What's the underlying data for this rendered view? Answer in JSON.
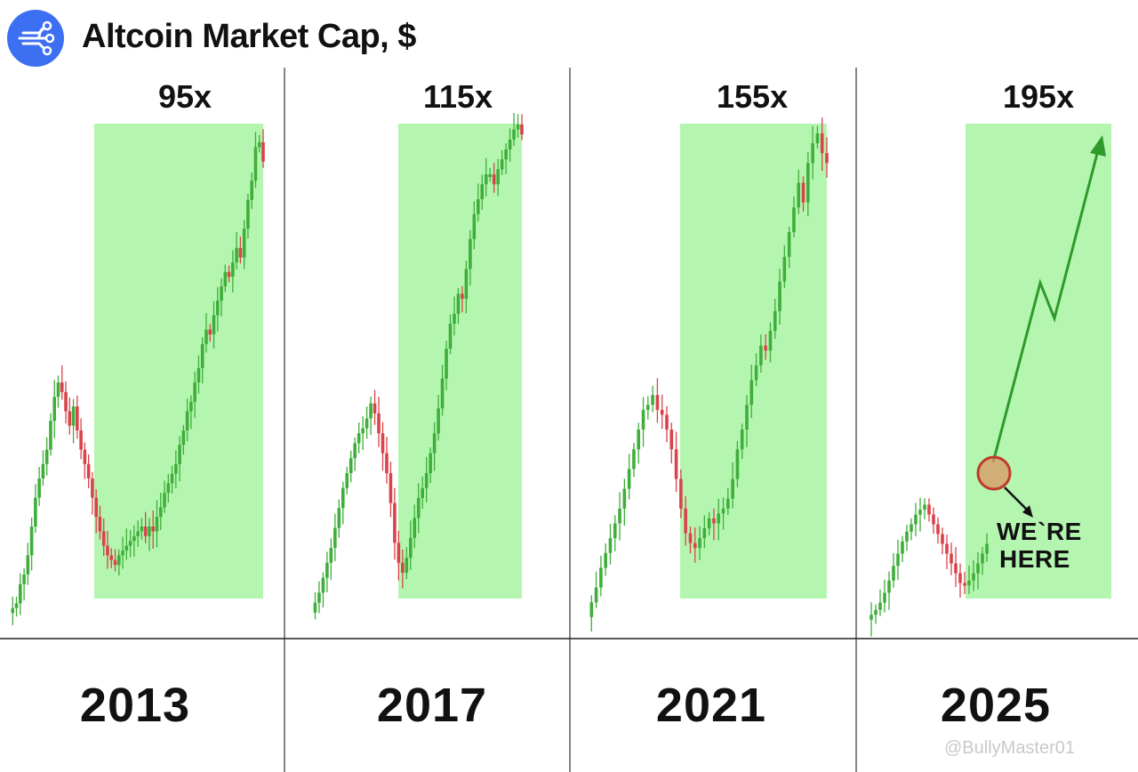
{
  "header": {
    "title": "Altcoin Market Cap, $",
    "logo_icon": "network-nodes-icon",
    "logo_color": "#3d6ff2"
  },
  "watermark": "@BullyMaster01",
  "chart_data": [
    {
      "type": "candlestick",
      "cycle": "2013",
      "multiplier_label": "95x",
      "series": [
        {
          "values": [
            0.02,
            0.03,
            0.04,
            0.08,
            0.1,
            0.14,
            0.2,
            0.26,
            0.3,
            0.33,
            0.36,
            0.42,
            0.47,
            0.5,
            0.48,
            0.44,
            0.41,
            0.45,
            0.4,
            0.36,
            0.33,
            0.3,
            0.26,
            0.22,
            0.19,
            0.16,
            0.14,
            0.13,
            0.12,
            0.14,
            0.15,
            0.16,
            0.17,
            0.18,
            0.19,
            0.2,
            0.18,
            0.2,
            0.19,
            0.22,
            0.24,
            0.27,
            0.29,
            0.31,
            0.33,
            0.37,
            0.4,
            0.44,
            0.46,
            0.5,
            0.53,
            0.58,
            0.61,
            0.6,
            0.64,
            0.67,
            0.7,
            0.73,
            0.72,
            0.75,
            0.78,
            0.76,
            0.82,
            0.88,
            0.92,
            0.99,
            1.0,
            0.96
          ]
        }
      ]
    },
    {
      "type": "candlestick",
      "cycle": "2017",
      "multiplier_label": "115x",
      "series": [
        {
          "values": [
            0.02,
            0.04,
            0.06,
            0.09,
            0.12,
            0.15,
            0.19,
            0.23,
            0.27,
            0.3,
            0.33,
            0.36,
            0.38,
            0.39,
            0.41,
            0.44,
            0.42,
            0.38,
            0.34,
            0.3,
            0.24,
            0.16,
            0.12,
            0.1,
            0.13,
            0.17,
            0.21,
            0.25,
            0.27,
            0.3,
            0.34,
            0.38,
            0.43,
            0.49,
            0.55,
            0.6,
            0.62,
            0.66,
            0.65,
            0.71,
            0.77,
            0.82,
            0.85,
            0.88,
            0.9,
            0.9,
            0.88,
            0.91,
            0.93,
            0.95,
            0.97,
            0.99,
            1.0,
            0.98
          ]
        }
      ]
    },
    {
      "type": "candlestick",
      "cycle": "2021",
      "multiplier_label": "155x",
      "series": [
        {
          "values": [
            0.02,
            0.05,
            0.08,
            0.12,
            0.15,
            0.18,
            0.21,
            0.24,
            0.28,
            0.32,
            0.36,
            0.4,
            0.44,
            0.45,
            0.47,
            0.44,
            0.43,
            0.4,
            0.36,
            0.3,
            0.24,
            0.19,
            0.17,
            0.16,
            0.18,
            0.2,
            0.22,
            0.21,
            0.23,
            0.24,
            0.26,
            0.3,
            0.36,
            0.4,
            0.45,
            0.5,
            0.53,
            0.57,
            0.56,
            0.6,
            0.64,
            0.7,
            0.75,
            0.8,
            0.85,
            0.9,
            0.86,
            0.94,
            0.98,
            1.0,
            0.96,
            0.94
          ]
        }
      ]
    },
    {
      "type": "candlestick",
      "cycle": "2025",
      "multiplier_label": "195x",
      "series": [
        {
          "values": [
            0.03,
            0.05,
            0.07,
            0.1,
            0.14,
            0.19,
            0.25,
            0.3,
            0.35,
            0.39,
            0.42,
            0.46,
            0.48,
            0.5,
            0.46,
            0.42,
            0.38,
            0.34,
            0.3,
            0.26,
            0.22,
            0.18,
            0.17,
            0.19,
            0.22,
            0.26,
            0.3,
            0.34
          ]
        }
      ],
      "annotation": {
        "text_line1": "WE`RE",
        "text_line2": "HERE"
      }
    }
  ]
}
